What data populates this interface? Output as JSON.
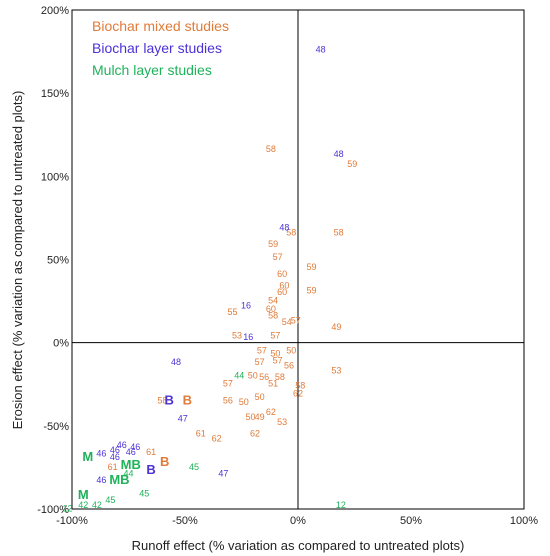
{
  "chart_data": {
    "type": "scatter",
    "xlabel": "Runoff effect (% variation as compared to untreated plots)",
    "ylabel": "Erosion effect (% variation as compared to untreated plots)",
    "xlim": [
      -100,
      100
    ],
    "ylim": [
      -100,
      200
    ],
    "x_ticks": [
      {
        "v": -100,
        "label": "-100%"
      },
      {
        "v": -50,
        "label": "-50%"
      },
      {
        "v": 0,
        "label": "0%"
      },
      {
        "v": 50,
        "label": "50%"
      },
      {
        "v": 100,
        "label": "100%"
      }
    ],
    "y_ticks": [
      {
        "v": 200,
        "label": "200%"
      },
      {
        "v": 150,
        "label": "150%"
      },
      {
        "v": 100,
        "label": "100%"
      },
      {
        "v": 50,
        "label": "50%"
      },
      {
        "v": 0,
        "label": "0%"
      },
      {
        "v": -50,
        "label": "-50%"
      },
      {
        "v": -100,
        "label": "-100%"
      }
    ],
    "grid": false,
    "legend_position": "top-left",
    "series": [
      {
        "name": "Biochar mixed studies",
        "color": "#E07B39",
        "points": [
          {
            "x": -12,
            "y": 116,
            "label": "58"
          },
          {
            "x": 24,
            "y": 107,
            "label": "59"
          },
          {
            "x": -3,
            "y": 66,
            "label": "58"
          },
          {
            "x": 18,
            "y": 66,
            "label": "58"
          },
          {
            "x": -11,
            "y": 59,
            "label": "59"
          },
          {
            "x": -9,
            "y": 51,
            "label": "57"
          },
          {
            "x": 6,
            "y": 45,
            "label": "59"
          },
          {
            "x": -7,
            "y": 41,
            "label": "60"
          },
          {
            "x": -6,
            "y": 34,
            "label": "60"
          },
          {
            "x": -7,
            "y": 30,
            "label": "60"
          },
          {
            "x": 6,
            "y": 31,
            "label": "59"
          },
          {
            "x": -11,
            "y": 25,
            "label": "54"
          },
          {
            "x": -12,
            "y": 20,
            "label": "60"
          },
          {
            "x": -11,
            "y": 16,
            "label": "58"
          },
          {
            "x": -29,
            "y": 18,
            "label": "55"
          },
          {
            "x": -5,
            "y": 12,
            "label": "54"
          },
          {
            "x": -1,
            "y": 13,
            "label": "57"
          },
          {
            "x": 17,
            "y": 9,
            "label": "49"
          },
          {
            "x": -27,
            "y": 4,
            "label": "53"
          },
          {
            "x": -10,
            "y": 4,
            "label": "57"
          },
          {
            "x": -16,
            "y": -5,
            "label": "57"
          },
          {
            "x": -10,
            "y": -7,
            "label": "50"
          },
          {
            "x": -3,
            "y": -5,
            "label": "50"
          },
          {
            "x": -17,
            "y": -12,
            "label": "57"
          },
          {
            "x": -9,
            "y": -11,
            "label": "57"
          },
          {
            "x": -4,
            "y": -14,
            "label": "56"
          },
          {
            "x": -20,
            "y": -20,
            "label": "50"
          },
          {
            "x": -15,
            "y": -21,
            "label": "56"
          },
          {
            "x": -8,
            "y": -21,
            "label": "58"
          },
          {
            "x": -31,
            "y": -25,
            "label": "57"
          },
          {
            "x": -11,
            "y": -25,
            "label": "51"
          },
          {
            "x": 1,
            "y": -26,
            "label": "58"
          },
          {
            "x": 0,
            "y": -31,
            "label": "62"
          },
          {
            "x": 17,
            "y": -17,
            "label": "53"
          },
          {
            "x": -17,
            "y": -33,
            "label": "50"
          },
          {
            "x": -31,
            "y": -35,
            "label": "56"
          },
          {
            "x": -24,
            "y": -36,
            "label": "50"
          },
          {
            "x": -60,
            "y": -35,
            "label": "58"
          },
          {
            "x": -12,
            "y": -42,
            "label": "62"
          },
          {
            "x": -21,
            "y": -45,
            "label": "50"
          },
          {
            "x": -17,
            "y": -45,
            "label": "49"
          },
          {
            "x": -7,
            "y": -48,
            "label": "53"
          },
          {
            "x": -43,
            "y": -55,
            "label": "61"
          },
          {
            "x": -36,
            "y": -58,
            "label": "62"
          },
          {
            "x": -19,
            "y": -55,
            "label": "62"
          },
          {
            "x": -65,
            "y": -66,
            "label": "61"
          },
          {
            "x": -82,
            "y": -75,
            "label": "61"
          }
        ]
      },
      {
        "name": "Biochar layer studies",
        "color": "#4B32D6",
        "points": [
          {
            "x": 10,
            "y": 176,
            "label": "48"
          },
          {
            "x": 18,
            "y": 113,
            "label": "48"
          },
          {
            "x": -6,
            "y": 69,
            "label": "48"
          },
          {
            "x": -23,
            "y": 22,
            "label": "16"
          },
          {
            "x": -22,
            "y": 3,
            "label": "16"
          },
          {
            "x": -54,
            "y": -12,
            "label": "48"
          },
          {
            "x": -51,
            "y": -46,
            "label": "47"
          },
          {
            "x": -33,
            "y": -79,
            "label": "47"
          },
          {
            "x": -78,
            "y": -62,
            "label": "46"
          },
          {
            "x": -72,
            "y": -63,
            "label": "46"
          },
          {
            "x": -81,
            "y": -65,
            "label": "46"
          },
          {
            "x": -87,
            "y": -67,
            "label": "46"
          },
          {
            "x": -81,
            "y": -69,
            "label": "46"
          },
          {
            "x": -74,
            "y": -66,
            "label": "46"
          },
          {
            "x": -87,
            "y": -83,
            "label": "46"
          }
        ]
      },
      {
        "name": "Mulch layer studies",
        "color": "#1FB25A",
        "points": [
          {
            "x": -26,
            "y": -20,
            "label": "44"
          },
          {
            "x": -46,
            "y": -75,
            "label": "45"
          },
          {
            "x": -75,
            "y": -79,
            "label": "44"
          },
          {
            "x": -68,
            "y": -91,
            "label": "45"
          },
          {
            "x": -83,
            "y": -95,
            "label": "45"
          },
          {
            "x": -89,
            "y": -98,
            "label": "42"
          },
          {
            "x": -95,
            "y": -98,
            "label": "42"
          },
          {
            "x": -102,
            "y": -100,
            "label": "12"
          },
          {
            "x": 19,
            "y": -98,
            "label": "12"
          }
        ]
      }
    ],
    "letter_markers": [
      {
        "x": -49,
        "y": -35,
        "label": "B",
        "series": "Biochar mixed studies"
      },
      {
        "x": -57,
        "y": -35,
        "label": "B",
        "series": "Biochar layer studies"
      },
      {
        "x": -59,
        "y": -72,
        "label": "B",
        "series": "Biochar mixed studies"
      },
      {
        "x": -65,
        "y": -77,
        "label": "B",
        "series": "Biochar layer studies"
      },
      {
        "x": -93,
        "y": -69,
        "label": "M",
        "series": "Mulch layer studies"
      },
      {
        "x": -74,
        "y": -74,
        "label": "MB",
        "series": "Mulch layer studies"
      },
      {
        "x": -79,
        "y": -83,
        "label": "MB",
        "series": "Mulch layer studies"
      },
      {
        "x": -95,
        "y": -92,
        "label": "M",
        "series": "Mulch layer studies"
      }
    ]
  }
}
